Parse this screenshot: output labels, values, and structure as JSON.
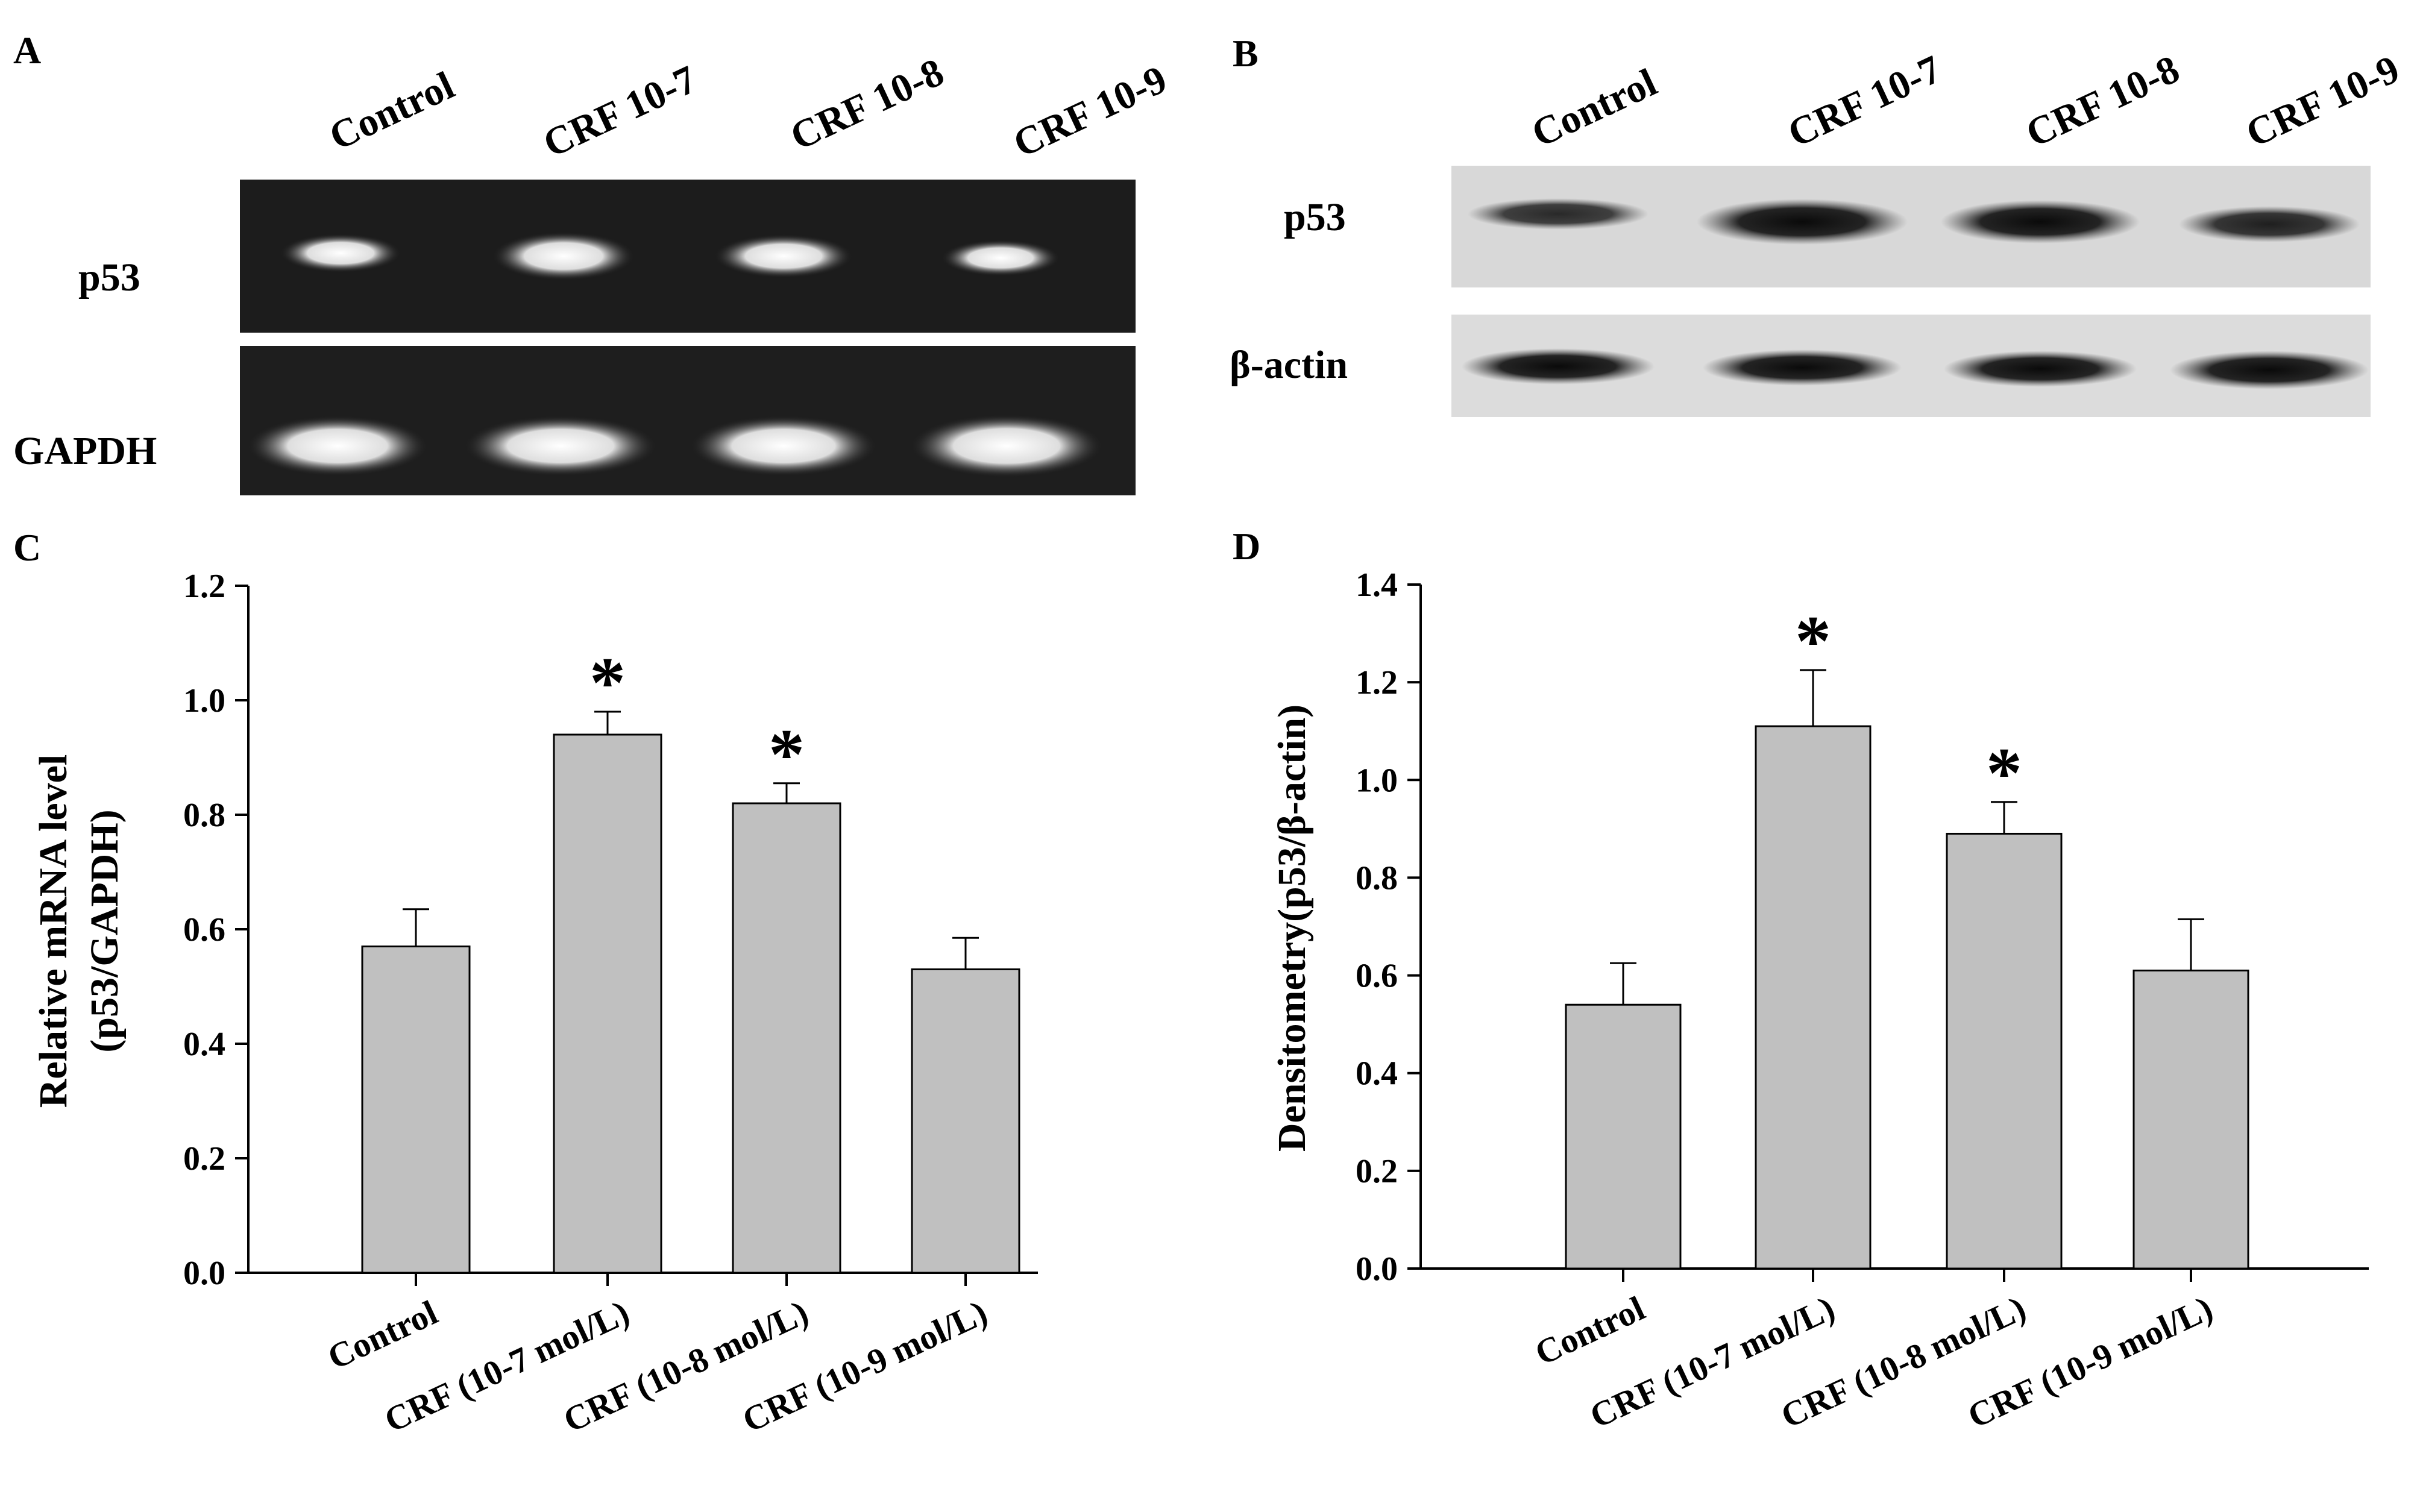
{
  "panels": {
    "A": {
      "letter": "A",
      "lanes": [
        "Control",
        "CRF 10-7",
        "CRF 10-8",
        "CRF 10-9"
      ],
      "rows": [
        "p53",
        "GAPDH"
      ]
    },
    "B": {
      "letter": "B",
      "lanes": [
        "Control",
        "CRF 10-7",
        "CRF 10-8",
        "CRF 10-9"
      ],
      "rows": [
        "p53",
        "β-actin"
      ]
    }
  },
  "chart_data": [
    {
      "type": "bar",
      "panel": "C",
      "categories": [
        "Control",
        "CRF (10-7 mol/L)",
        "CRF (10-8 mol/L)",
        "CRF (10-9 mol/L)"
      ],
      "values": [
        0.57,
        0.94,
        0.82,
        0.53
      ],
      "errors": [
        0.065,
        0.04,
        0.035,
        0.055
      ],
      "significant": [
        false,
        true,
        true,
        false
      ],
      "significance_mark": "*",
      "title": "",
      "xlabel": "",
      "ylabel": [
        "Relative mRNA level",
        "(p53/GAPDH)"
      ],
      "ylim": [
        0,
        1.2
      ],
      "yticks": [
        "0.0",
        "0.2",
        "0.4",
        "0.6",
        "0.8",
        "1.0",
        "1.2"
      ],
      "bar_color": "#c0c0c0",
      "grid": false
    },
    {
      "type": "bar",
      "panel": "D",
      "categories": [
        "Control",
        "CRF (10-7 mol/L)",
        "CRF (10-8 mol/L)",
        "CRF (10-9 mol/L)"
      ],
      "values": [
        0.54,
        1.11,
        0.89,
        0.61
      ],
      "errors": [
        0.085,
        0.115,
        0.065,
        0.105
      ],
      "significant": [
        false,
        true,
        true,
        false
      ],
      "significance_mark": "*",
      "title": "",
      "xlabel": "",
      "ylabel": [
        "Densitometry(p53/β-actin)"
      ],
      "ylim": [
        0,
        1.4
      ],
      "yticks": [
        "0.0",
        "0.2",
        "0.4",
        "0.6",
        "0.8",
        "1.0",
        "1.2",
        "1.4"
      ],
      "bar_color": "#c0c0c0",
      "grid": false
    }
  ]
}
